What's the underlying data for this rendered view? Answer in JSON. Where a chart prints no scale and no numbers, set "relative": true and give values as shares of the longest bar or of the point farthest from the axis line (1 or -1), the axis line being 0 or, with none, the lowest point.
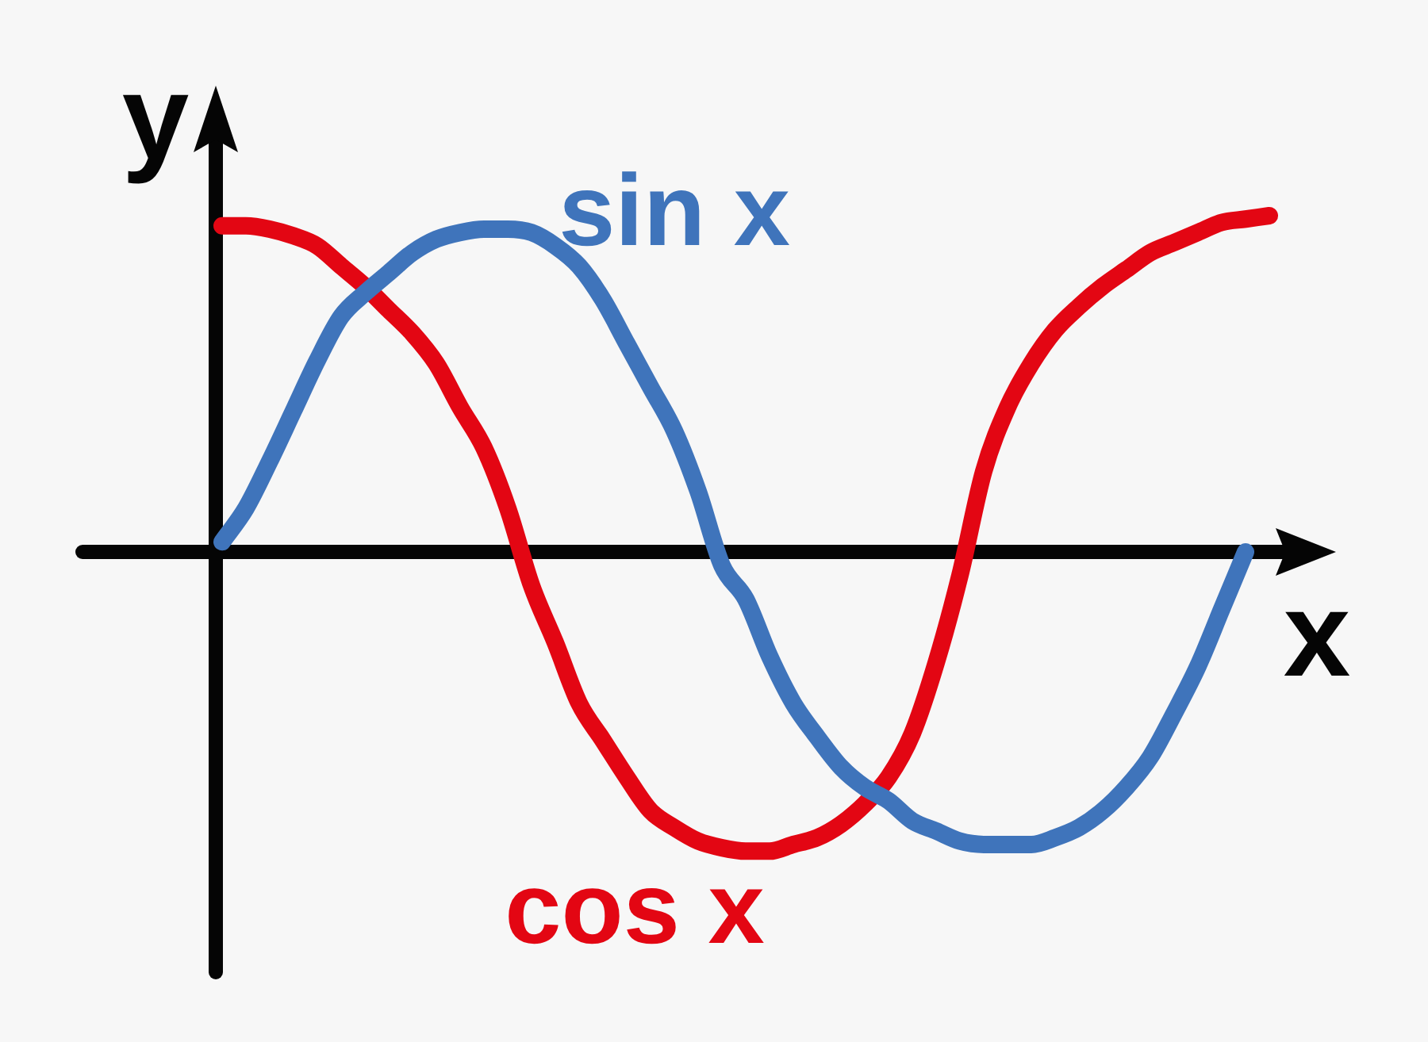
{
  "chart_data": {
    "type": "line",
    "relative": true,
    "xlabel": "x",
    "ylabel": "y",
    "categories": [
      null,
      null,
      null,
      null,
      null,
      null,
      null,
      null,
      null,
      null,
      null,
      null,
      null,
      null,
      null,
      null,
      null,
      null,
      null,
      null,
      null,
      null,
      null,
      null,
      null,
      null,
      null,
      null,
      null,
      null,
      null,
      null,
      null,
      null,
      null,
      null,
      null,
      null,
      null,
      null,
      null,
      null,
      null,
      null,
      null
    ],
    "series": [
      {
        "name": "sin x",
        "color": "#3f74bb",
        "values": [
          0.03,
          0.13,
          0.27,
          0.42,
          0.57,
          0.7,
          0.77,
          0.83,
          0.89,
          0.93,
          0.95,
          0.96,
          0.96,
          0.95,
          0.91,
          0.85,
          0.75,
          0.62,
          0.49,
          0.36,
          0.18,
          -0.04,
          -0.14,
          -0.31,
          -0.45,
          -0.55,
          -0.64,
          -0.7,
          -0.74,
          -0.8,
          -0.83,
          -0.86,
          -0.87,
          -0.87,
          -0.87,
          -0.85,
          -0.82,
          -0.77,
          -0.7,
          -0.61,
          -0.48,
          -0.34,
          -0.17,
          0,
          null
        ]
      },
      {
        "name": "cos x",
        "color": "#e30613",
        "values": [
          0.97,
          0.97,
          0.96,
          0.94,
          0.91,
          0.85,
          0.79,
          0.72,
          0.65,
          0.56,
          0.43,
          0.31,
          0.13,
          -0.1,
          -0.27,
          -0.45,
          -0.56,
          -0.67,
          -0.77,
          -0.82,
          -0.86,
          -0.88,
          -0.89,
          -0.89,
          -0.87,
          -0.85,
          -0.81,
          -0.75,
          -0.67,
          -0.54,
          -0.33,
          -0.07,
          0.24,
          0.43,
          0.56,
          0.66,
          0.73,
          0.79,
          0.84,
          0.89,
          0.92,
          0.95,
          0.98,
          0.99,
          1.0
        ]
      }
    ]
  }
}
